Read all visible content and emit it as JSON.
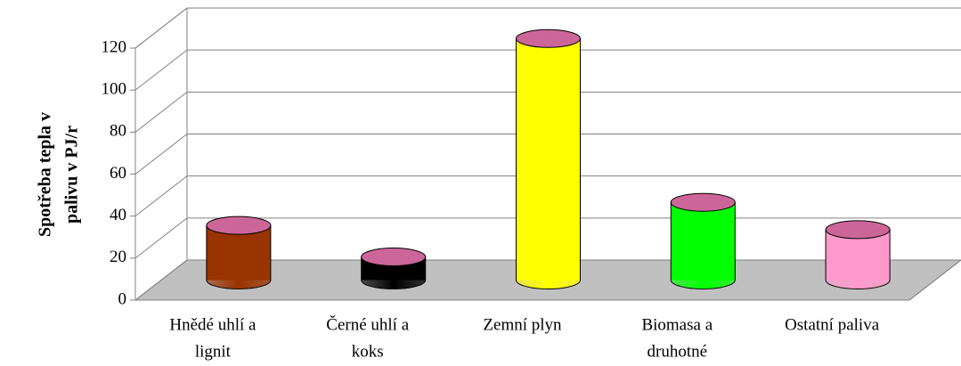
{
  "chart_data": {
    "type": "bar3d",
    "ylabel": [
      "Spotřeba tepla v",
      "palivu v PJ/r"
    ],
    "categories": [
      [
        "Hnědé uhlí a",
        "lignit"
      ],
      [
        "Černé uhlí a",
        "koks"
      ],
      [
        "Zemní plyn"
      ],
      [
        "Biomasa a",
        "druhotné"
      ],
      [
        "Ostatní paliva"
      ]
    ],
    "values": [
      26,
      11,
      115,
      37,
      24
    ],
    "colors": [
      "#993300",
      "#000000",
      "#ffff00",
      "#00ff00",
      "#ff99cc"
    ],
    "top_color": "#cc6699",
    "ylim": [
      0,
      120
    ],
    "yticks": [
      0,
      20,
      40,
      60,
      80,
      100,
      120
    ],
    "grid": true
  }
}
